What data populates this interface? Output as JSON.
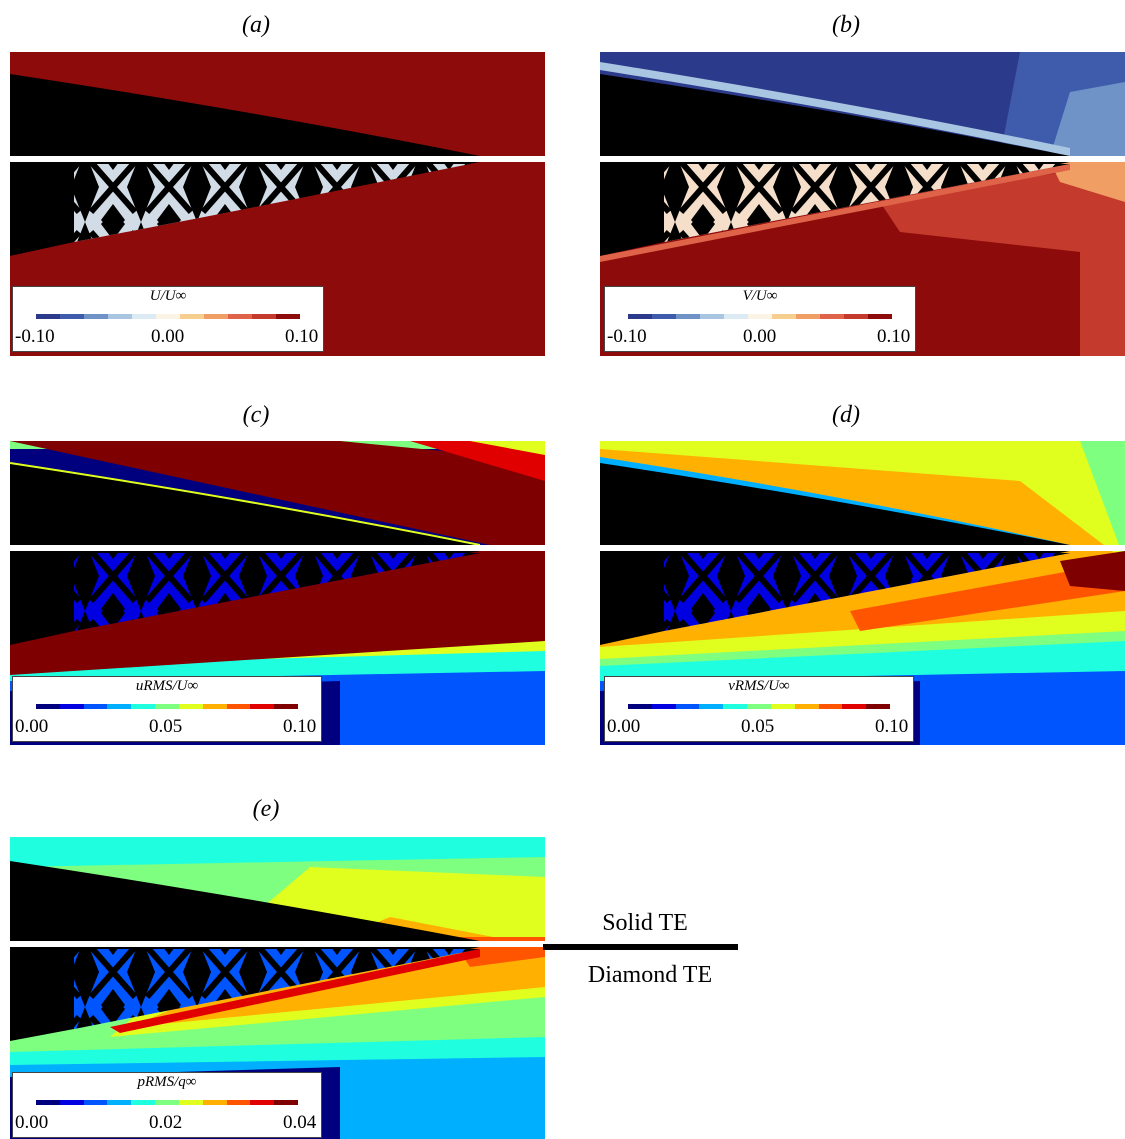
{
  "panels": [
    {
      "label": "(a)",
      "colorbar": {
        "title": "U/U∞",
        "ticks": [
          "-0.10",
          "0.00",
          "0.10"
        ],
        "colors": [
          "#2c3a8c",
          "#3e5cab",
          "#6f93c7",
          "#a8c6e2",
          "#dcebf3",
          "#fbf4e6",
          "#f6cf8e",
          "#f09e63",
          "#df6349",
          "#c43a2d",
          "#8e0b0b"
        ]
      }
    },
    {
      "label": "(b)",
      "colorbar": {
        "title": "V/U∞",
        "ticks": [
          "-0.10",
          "0.00",
          "0.10"
        ],
        "colors": [
          "#2c3a8c",
          "#3e5cab",
          "#6f93c7",
          "#a8c6e2",
          "#dcebf3",
          "#fbf4e6",
          "#f6cf8e",
          "#f09e63",
          "#df6349",
          "#c43a2d",
          "#8e0b0b"
        ]
      }
    },
    {
      "label": "(c)",
      "colorbar": {
        "title": "uRMS/U∞",
        "ticks": [
          "0.00",
          "0.05",
          "0.10"
        ],
        "colors": [
          "#00007f",
          "#0000e0",
          "#0055ff",
          "#00b0ff",
          "#1fffe0",
          "#7fff7f",
          "#e0ff1f",
          "#ffb000",
          "#ff5500",
          "#e00000",
          "#7f0000"
        ]
      }
    },
    {
      "label": "(d)",
      "colorbar": {
        "title": "vRMS/U∞",
        "ticks": [
          "0.00",
          "0.05",
          "0.10"
        ],
        "colors": [
          "#00007f",
          "#0000e0",
          "#0055ff",
          "#00b0ff",
          "#1fffe0",
          "#7fff7f",
          "#e0ff1f",
          "#ffb000",
          "#ff5500",
          "#e00000",
          "#7f0000"
        ]
      }
    },
    {
      "label": "(e)",
      "colorbar": {
        "title": "pRMS/q∞",
        "ticks": [
          "0.00",
          "0.02",
          "0.04"
        ],
        "colors": [
          "#00007f",
          "#0000e0",
          "#0055ff",
          "#00b0ff",
          "#1fffe0",
          "#7fff7f",
          "#e0ff1f",
          "#ffb000",
          "#ff5500",
          "#e00000",
          "#7f0000"
        ]
      }
    }
  ],
  "legend": {
    "top_label": "Solid TE",
    "bottom_label": "Diamond TE"
  }
}
